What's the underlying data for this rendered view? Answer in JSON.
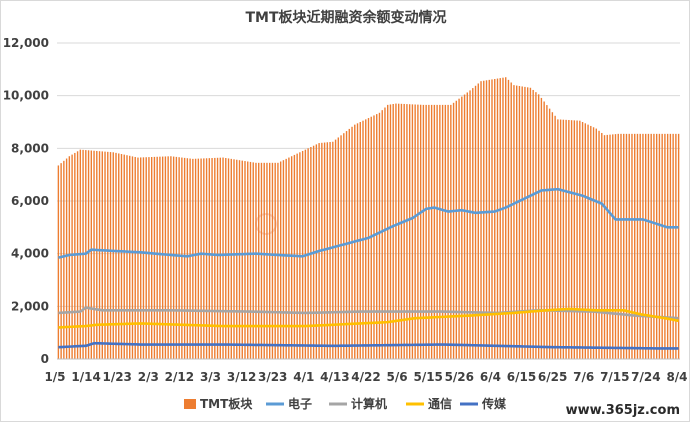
{
  "chart_data": {
    "type": "bar+line",
    "title": "TMT板块近期融资余额变动情况",
    "yticks": [
      "0",
      "2,000",
      "4,000",
      "6,000",
      "8,000",
      "10,000",
      "12,000"
    ],
    "ylim": [
      0,
      12000
    ],
    "x_tick_labels": [
      "1/5",
      "1/14",
      "1/23",
      "2/3",
      "2/12",
      "3/3",
      "3/12",
      "3/23",
      "4/1",
      "4/13",
      "4/22",
      "5/6",
      "5/15",
      "5/26",
      "6/4",
      "6/15",
      "6/25",
      "7/6",
      "7/15",
      "7/24",
      "8/4"
    ],
    "legend_position": "bottom",
    "grid": true,
    "series": [
      {
        "name": "TMT板块",
        "kind": "bar",
        "color": "#ED7D31",
        "knots": [
          [
            0,
            7350
          ],
          [
            4,
            7700
          ],
          [
            8,
            7950
          ],
          [
            20,
            7850
          ],
          [
            29,
            7650
          ],
          [
            41,
            7700
          ],
          [
            49,
            7600
          ],
          [
            60,
            7650
          ],
          [
            72,
            7450
          ],
          [
            80,
            7450
          ],
          [
            87,
            7800
          ],
          [
            95,
            8200
          ],
          [
            100,
            8250
          ],
          [
            108,
            8900
          ],
          [
            117,
            9350
          ],
          [
            120,
            9650
          ],
          [
            123,
            9700
          ],
          [
            133,
            9650
          ],
          [
            143,
            9650
          ],
          [
            150,
            10200
          ],
          [
            154,
            10550
          ],
          [
            163,
            10700
          ],
          [
            166,
            10400
          ],
          [
            172,
            10300
          ],
          [
            175,
            10050
          ],
          [
            182,
            9100
          ],
          [
            190,
            9050
          ],
          [
            196,
            8750
          ],
          [
            199,
            8500
          ],
          [
            204,
            8550
          ]
        ]
      },
      {
        "name": "电子",
        "kind": "line",
        "color": "#5B9BD5",
        "knots": [
          [
            0,
            3850
          ],
          [
            4,
            3950
          ],
          [
            10,
            4000
          ],
          [
            12,
            4150
          ],
          [
            30,
            4050
          ],
          [
            41,
            3950
          ],
          [
            47,
            3900
          ],
          [
            52,
            4000
          ],
          [
            58,
            3950
          ],
          [
            72,
            4000
          ],
          [
            80,
            3950
          ],
          [
            89,
            3900
          ],
          [
            95,
            4100
          ],
          [
            104,
            4350
          ],
          [
            113,
            4600
          ],
          [
            122,
            5050
          ],
          [
            129,
            5350
          ],
          [
            134,
            5700
          ],
          [
            137,
            5750
          ],
          [
            142,
            5600
          ],
          [
            147,
            5650
          ],
          [
            152,
            5550
          ],
          [
            159,
            5600
          ],
          [
            163,
            5750
          ],
          [
            171,
            6150
          ],
          [
            176,
            6400
          ],
          [
            182,
            6450
          ],
          [
            191,
            6200
          ],
          [
            198,
            5900
          ],
          [
            203,
            5300
          ],
          [
            213,
            5300
          ],
          [
            222,
            5000
          ],
          [
            226,
            5000
          ]
        ]
      },
      {
        "name": "计算机",
        "kind": "line",
        "color": "#A5A5A5",
        "knots": [
          [
            0,
            1750
          ],
          [
            8,
            1800
          ],
          [
            10,
            1950
          ],
          [
            16,
            1850
          ],
          [
            40,
            1850
          ],
          [
            70,
            1800
          ],
          [
            90,
            1750
          ],
          [
            110,
            1800
          ],
          [
            140,
            1800
          ],
          [
            160,
            1750
          ],
          [
            175,
            1850
          ],
          [
            195,
            1800
          ],
          [
            210,
            1650
          ],
          [
            226,
            1550
          ]
        ]
      },
      {
        "name": "通信",
        "kind": "line",
        "color": "#FFC000",
        "knots": [
          [
            0,
            1200
          ],
          [
            10,
            1250
          ],
          [
            14,
            1300
          ],
          [
            30,
            1350
          ],
          [
            60,
            1250
          ],
          [
            90,
            1250
          ],
          [
            100,
            1300
          ],
          [
            110,
            1350
          ],
          [
            120,
            1400
          ],
          [
            130,
            1550
          ],
          [
            150,
            1650
          ],
          [
            166,
            1750
          ],
          [
            178,
            1850
          ],
          [
            186,
            1900
          ],
          [
            196,
            1850
          ],
          [
            206,
            1850
          ],
          [
            212,
            1700
          ],
          [
            221,
            1550
          ],
          [
            226,
            1450
          ]
        ]
      },
      {
        "name": "传媒",
        "kind": "line",
        "color": "#4472C4",
        "knots": [
          [
            0,
            450
          ],
          [
            10,
            500
          ],
          [
            13,
            600
          ],
          [
            30,
            550
          ],
          [
            60,
            550
          ],
          [
            100,
            500
          ],
          [
            140,
            550
          ],
          [
            180,
            450
          ],
          [
            220,
            400
          ],
          [
            226,
            400
          ]
        ]
      }
    ]
  },
  "watermark_text": "www.365jz.com"
}
